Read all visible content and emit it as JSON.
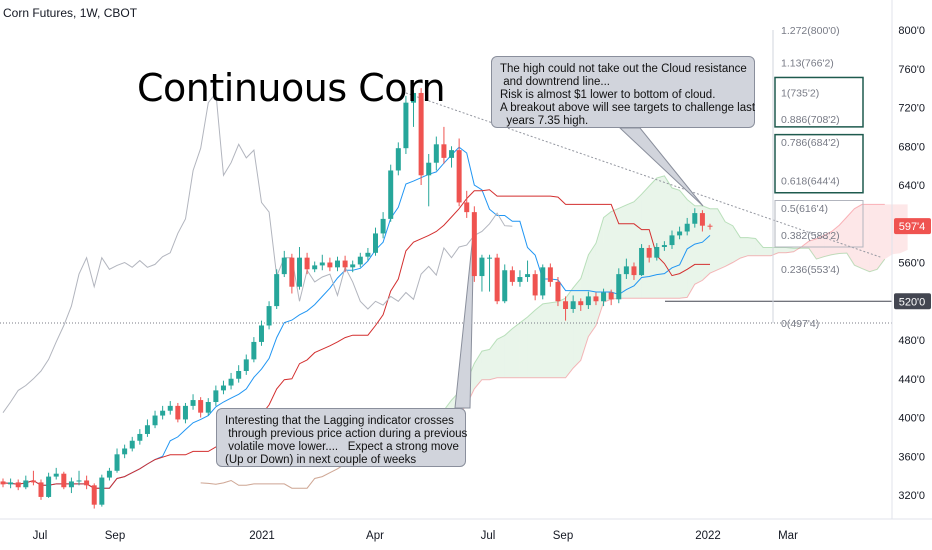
{
  "header": {
    "symbol_line": "Corn Futures, 1W, CBOT"
  },
  "title": "Continuous Corn",
  "annotations": {
    "cloud_note": "The high could not take out the Cloud resistance\n and downtrend line...\nRisk is almost $1 lower to bottom of cloud.\nA breakout above will see targets to challenge last\n  years 7.35 high.",
    "lagging_note": "Interesting that the Lagging indicator crosses\n through previous price action during a previous\n volatile move lower....   Expect a strong move\n(Up or Down) in next couple of weeks"
  },
  "chart_data": {
    "type": "candlestick",
    "price_axis": {
      "labels": [
        "320'0",
        "360'0",
        "400'0",
        "440'0",
        "480'0",
        "520'0",
        "560'0",
        "600'0",
        "640'0",
        "680'0",
        "720'0",
        "760'0",
        "800'0"
      ],
      "range": [
        300,
        810
      ]
    },
    "time_axis": {
      "labels": [
        "Jul",
        "Sep",
        "2021",
        "Apr",
        "Jul",
        "Sep",
        "2022",
        "Mar"
      ]
    },
    "last_price": "597'4",
    "horizontal_level": "520'0",
    "fib_levels": [
      {
        "label": "1.272(800'0)",
        "value": 800.0
      },
      {
        "label": "1.13(766'2)",
        "value": 766.25
      },
      {
        "label": "1(735'2)",
        "value": 735.25
      },
      {
        "label": "0.886(708'2)",
        "value": 708.25
      },
      {
        "label": "0.786(684'2)",
        "value": 684.25
      },
      {
        "label": "0.618(644'4)",
        "value": 644.5
      },
      {
        "label": "0.5(616'4)",
        "value": 616.5
      },
      {
        "label": "0.382(588'2)",
        "value": 588.25
      },
      {
        "label": "0.236(553'4)",
        "value": 553.5
      },
      {
        "label": "0(497'4)",
        "value": 497.5
      }
    ],
    "candles": [
      [
        334,
        331,
        337,
        328
      ],
      [
        331,
        333,
        337,
        327
      ],
      [
        333,
        328,
        336,
        325
      ],
      [
        328,
        335,
        340,
        326
      ],
      [
        335,
        333,
        345,
        330
      ],
      [
        333,
        318,
        336,
        315
      ],
      [
        318,
        339,
        343,
        317
      ],
      [
        339,
        342,
        348,
        336
      ],
      [
        342,
        328,
        344,
        326
      ],
      [
        328,
        334,
        338,
        322
      ],
      [
        334,
        335,
        345,
        330
      ],
      [
        335,
        330,
        340,
        326
      ],
      [
        330,
        310,
        332,
        306
      ],
      [
        310,
        338,
        341,
        308
      ],
      [
        338,
        345,
        348,
        335
      ],
      [
        345,
        362,
        368,
        343
      ],
      [
        362,
        368,
        372,
        358
      ],
      [
        368,
        376,
        380,
        365
      ],
      [
        376,
        383,
        388,
        372
      ],
      [
        383,
        392,
        398,
        380
      ],
      [
        392,
        402,
        407,
        389
      ],
      [
        402,
        407,
        412,
        398
      ],
      [
        407,
        412,
        417,
        403
      ],
      [
        412,
        398,
        415,
        395
      ],
      [
        398,
        412,
        415,
        394
      ],
      [
        412,
        418,
        424,
        408
      ],
      [
        418,
        405,
        421,
        400
      ],
      [
        405,
        416,
        420,
        402
      ],
      [
        416,
        428,
        433,
        412
      ],
      [
        428,
        433,
        438,
        424
      ],
      [
        433,
        440,
        446,
        429
      ],
      [
        440,
        448,
        454,
        436
      ],
      [
        448,
        460,
        465,
        444
      ],
      [
        460,
        478,
        483,
        457
      ],
      [
        478,
        495,
        500,
        474
      ],
      [
        495,
        515,
        520,
        491
      ],
      [
        515,
        548,
        553,
        512
      ],
      [
        548,
        565,
        572,
        545
      ],
      [
        565,
        535,
        569,
        528
      ],
      [
        535,
        565,
        576,
        532
      ],
      [
        565,
        553,
        570,
        548
      ],
      [
        553,
        557,
        561,
        550
      ],
      [
        557,
        560,
        568,
        552
      ],
      [
        560,
        555,
        565,
        551
      ],
      [
        555,
        562,
        566,
        551
      ],
      [
        562,
        555,
        567,
        550
      ],
      [
        555,
        558,
        562,
        550
      ],
      [
        558,
        566,
        570,
        555
      ],
      [
        566,
        570,
        575,
        562
      ],
      [
        570,
        590,
        596,
        567
      ],
      [
        590,
        605,
        612,
        585
      ],
      [
        605,
        655,
        661,
        602
      ],
      [
        655,
        678,
        684,
        650
      ],
      [
        678,
        725,
        732,
        672
      ],
      [
        725,
        735,
        738,
        700
      ],
      [
        735,
        650,
        740,
        640
      ],
      [
        650,
        663,
        672,
        618
      ],
      [
        663,
        682,
        690,
        655
      ],
      [
        682,
        668,
        700,
        662
      ],
      [
        668,
        676,
        680,
        658
      ],
      [
        676,
        622,
        688,
        618
      ],
      [
        622,
        612,
        634,
        606
      ],
      [
        612,
        546,
        618,
        540
      ],
      [
        546,
        565,
        568,
        530
      ],
      [
        565,
        565,
        568,
        530
      ],
      [
        565,
        520,
        569,
        517
      ],
      [
        520,
        552,
        558,
        518
      ],
      [
        552,
        540,
        556,
        536
      ],
      [
        540,
        545,
        552,
        535
      ],
      [
        545,
        548,
        562,
        540
      ],
      [
        548,
        526,
        552,
        521
      ],
      [
        526,
        555,
        558,
        522
      ],
      [
        555,
        540,
        559,
        535
      ],
      [
        540,
        520,
        545,
        515
      ],
      [
        520,
        512,
        525,
        500
      ],
      [
        512,
        520,
        526,
        508
      ],
      [
        520,
        516,
        523,
        510
      ],
      [
        516,
        525,
        530,
        512
      ],
      [
        525,
        520,
        529,
        516
      ],
      [
        520,
        529,
        533,
        515
      ],
      [
        529,
        522,
        532,
        516
      ],
      [
        522,
        548,
        554,
        518
      ],
      [
        548,
        556,
        564,
        543
      ],
      [
        556,
        547,
        560,
        542
      ],
      [
        547,
        575,
        579,
        546
      ],
      [
        575,
        565,
        578,
        560
      ],
      [
        565,
        576,
        580,
        562
      ],
      [
        576,
        578,
        582,
        572
      ],
      [
        578,
        588,
        593,
        574
      ],
      [
        588,
        592,
        597,
        584
      ],
      [
        592,
        600,
        606,
        588
      ],
      [
        600,
        611,
        616,
        596
      ],
      [
        611,
        598,
        614,
        592
      ],
      [
        598,
        597.5,
        600,
        594
      ]
    ]
  }
}
